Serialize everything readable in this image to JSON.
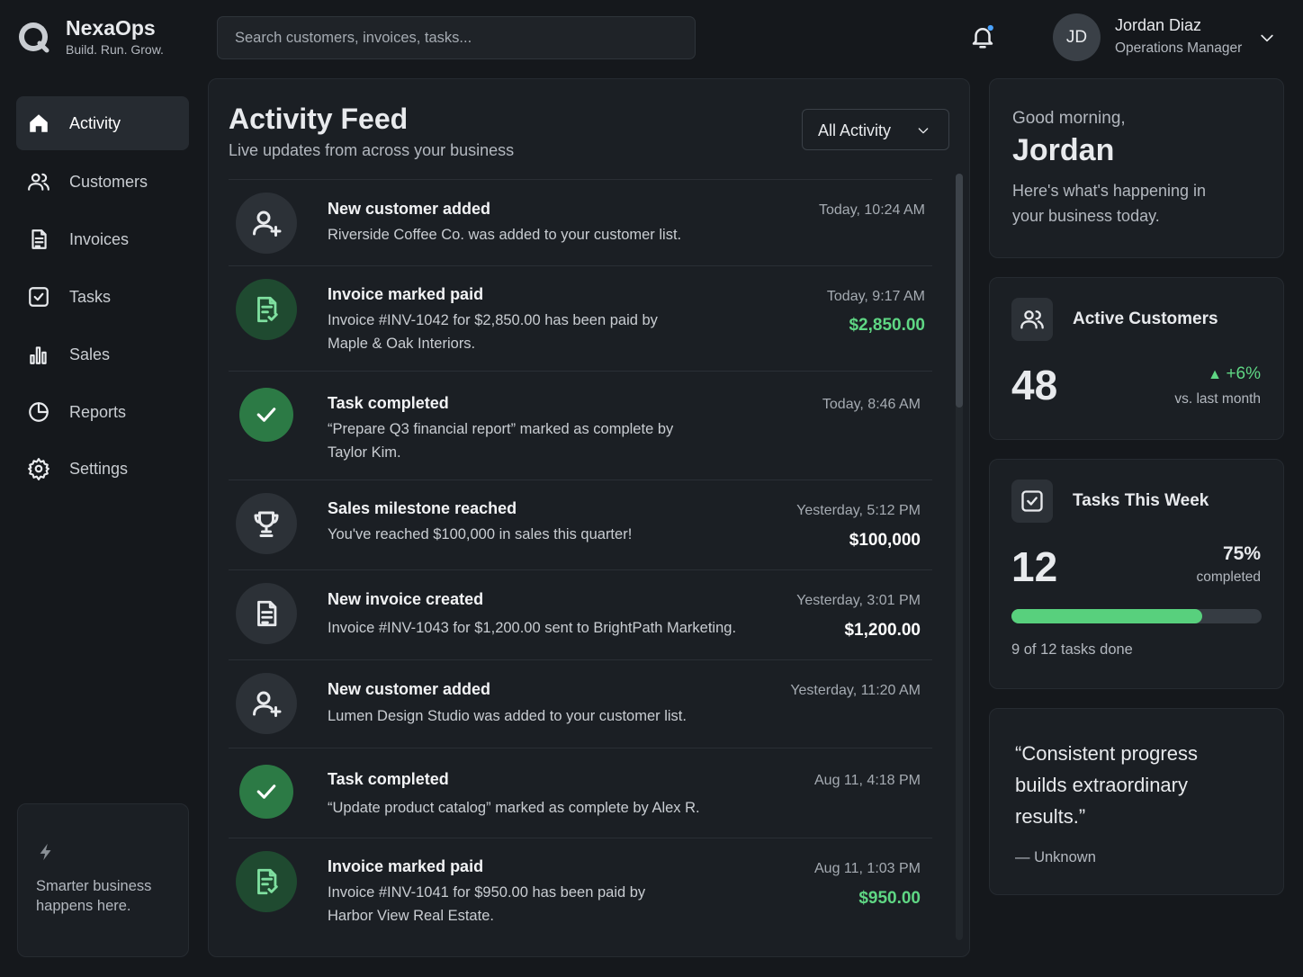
{
  "header": {
    "brand": "NexaOps",
    "tagline": "Build. Run. Grow.",
    "search_placeholder": "Search customers, invoices, tasks...",
    "user": {
      "initials": "JD",
      "name": "Jordan Diaz",
      "role": "Operations Manager"
    }
  },
  "nav": {
    "items": [
      "Activity",
      "Customers",
      "Invoices",
      "Tasks",
      "Sales",
      "Reports",
      "Settings"
    ],
    "promo": "Smarter business happens here."
  },
  "feed": {
    "title": "Activity Feed",
    "subtitle": "Live updates from across your business",
    "filter": "All Activity",
    "items": [
      {
        "title": "New customer added",
        "description": "Riverside Coffee Co. was added to your customer list.",
        "time": "Today, 10:24 AM"
      },
      {
        "title": "Invoice marked paid",
        "description": "Invoice #INV-1042 for $2,850.00 has been paid by Maple & Oak Interiors.",
        "time": "Today, 9:17 AM",
        "amount": "$2,850.00"
      },
      {
        "title": "Task completed",
        "description": "“Prepare Q3 financial report” marked as complete by Taylor Kim.",
        "time": "Today, 8:46 AM"
      },
      {
        "title": "Sales milestone reached",
        "description": "You've reached $100,000 in sales this quarter!",
        "time": "Yesterday, 5:12 PM",
        "amount": "$100,000"
      },
      {
        "title": "New invoice created",
        "description": "Invoice #INV-1043 for $1,200.00 sent to BrightPath Marketing.",
        "time": "Yesterday, 3:01 PM",
        "amount": "$1,200.00"
      },
      {
        "title": "New customer added",
        "description": "Lumen Design Studio was added to your customer list.",
        "time": "Yesterday, 11:20 AM"
      },
      {
        "title": "Task completed",
        "description": "“Update product catalog” marked as complete by Alex R.",
        "time": "Aug 11, 4:18 PM"
      },
      {
        "title": "Invoice marked paid",
        "description": "Invoice #INV-1041 for $950.00 has been paid by Harbor View Real Estate.",
        "time": "Aug 11, 1:03 PM",
        "amount": "$950.00"
      }
    ]
  },
  "greeting": {
    "salutation": "Good morning,",
    "name": "Jordan",
    "message": "Here's what's happening in your business today."
  },
  "customers_card": {
    "title": "Active Customers",
    "value": "48",
    "change": "+6%",
    "note": "vs. last month"
  },
  "tasks_card": {
    "title": "Tasks This Week",
    "value": "12",
    "progress": {
      "value": 75,
      "label": "75%"
    },
    "progress_note": "completed",
    "summary": "9 of 12 tasks done"
  },
  "quote": {
    "text": "“Consistent progress builds extraordinary results.”",
    "author": "— Unknown"
  }
}
